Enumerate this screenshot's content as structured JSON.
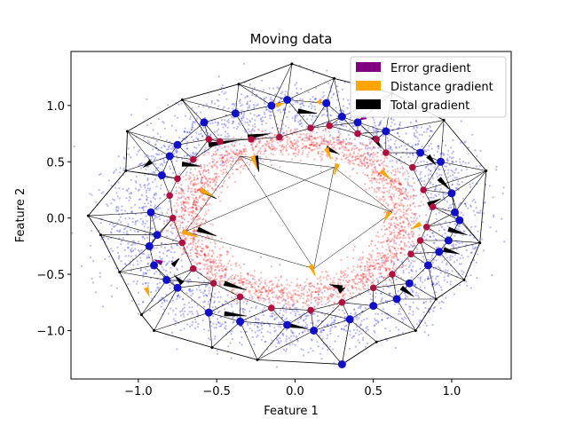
{
  "chart_data": {
    "type": "scatter",
    "title": "Moving data",
    "xlabel": "Feature 1",
    "ylabel": "Feature 2",
    "xlim": [
      -1.43,
      1.38
    ],
    "ylim": [
      -1.43,
      1.48
    ],
    "xticks": [
      -1.0,
      -0.5,
      0.0,
      0.5,
      1.0
    ],
    "xtick_labels": [
      "−1.0",
      "−0.5",
      "0.0",
      "0.5",
      "1.0"
    ],
    "yticks": [
      -1.0,
      -0.5,
      0.0,
      0.5,
      1.0
    ],
    "ytick_labels": [
      "−1.0",
      "−0.5",
      "0.0",
      "0.5",
      "1.0"
    ],
    "grid": false,
    "legend_position": "top-right",
    "legend": [
      {
        "label": "Error gradient",
        "color": "#800080"
      },
      {
        "label": "Distance gradient",
        "color": "#ffa500"
      },
      {
        "label": "Total gradient",
        "color": "#000000"
      }
    ],
    "clouds": [
      {
        "color": "#0000ff",
        "rx": 1.02,
        "ry": 0.98,
        "spread": 0.14,
        "count": 2600
      },
      {
        "color": "#ff0000",
        "rx": 0.68,
        "ry": 0.68,
        "spread": 0.1,
        "count": 2400
      }
    ],
    "outer_nodes": [
      [
        -1.32,
        0.02
      ],
      [
        -1.08,
        0.42
      ],
      [
        -1.07,
        0.77
      ],
      [
        -0.72,
        1.05
      ],
      [
        -0.36,
        1.19
      ],
      [
        -0.02,
        1.37
      ],
      [
        0.25,
        1.24
      ],
      [
        0.62,
        1.11
      ],
      [
        0.95,
        0.87
      ],
      [
        1.22,
        0.42
      ],
      [
        1.18,
        -0.22
      ],
      [
        1.08,
        -0.55
      ],
      [
        0.9,
        -0.72
      ],
      [
        0.77,
        -1.0
      ],
      [
        0.52,
        -1.1
      ],
      [
        0.3,
        -1.3
      ],
      [
        -0.24,
        -1.26
      ],
      [
        -0.53,
        -1.15
      ],
      [
        -0.9,
        -1.0
      ],
      [
        -0.98,
        -0.86
      ],
      [
        -1.12,
        -0.48
      ],
      [
        -1.24,
        -0.15
      ]
    ],
    "blue_nodes": [
      [
        -0.92,
        0.05
      ],
      [
        -0.88,
        -0.15
      ],
      [
        -0.85,
        0.38
      ],
      [
        -0.8,
        0.55
      ],
      [
        -0.75,
        0.65
      ],
      [
        -0.58,
        0.85
      ],
      [
        -0.38,
        0.93
      ],
      [
        -0.15,
        1.0
      ],
      [
        -0.05,
        1.05
      ],
      [
        0.2,
        1.02
      ],
      [
        0.3,
        0.9
      ],
      [
        0.4,
        0.85
      ],
      [
        0.58,
        0.77
      ],
      [
        0.8,
        0.58
      ],
      [
        0.93,
        0.5
      ],
      [
        1.0,
        0.22
      ],
      [
        1.02,
        0.05
      ],
      [
        1.05,
        -0.02
      ],
      [
        0.98,
        -0.2
      ],
      [
        0.92,
        -0.3
      ],
      [
        0.85,
        -0.42
      ],
      [
        0.73,
        -0.58
      ],
      [
        0.65,
        -0.72
      ],
      [
        0.5,
        -0.78
      ],
      [
        0.35,
        -0.9
      ],
      [
        0.12,
        -1.0
      ],
      [
        -0.05,
        -0.95
      ],
      [
        -0.35,
        -0.92
      ],
      [
        -0.55,
        -0.84
      ],
      [
        -0.75,
        -0.62
      ],
      [
        -0.82,
        -0.55
      ],
      [
        -0.9,
        -0.42
      ],
      [
        -0.93,
        -0.25
      ],
      [
        0.3,
        -1.3
      ]
    ],
    "red_nodes": [
      [
        -0.55,
        0.7
      ],
      [
        -0.48,
        0.68
      ],
      [
        -0.28,
        0.7
      ],
      [
        -0.1,
        0.72
      ],
      [
        0.1,
        0.8
      ],
      [
        0.22,
        0.82
      ],
      [
        0.4,
        0.75
      ],
      [
        0.52,
        0.7
      ],
      [
        0.58,
        0.58
      ],
      [
        0.75,
        0.45
      ],
      [
        0.82,
        0.25
      ],
      [
        0.88,
        0.1
      ],
      [
        0.84,
        -0.08
      ],
      [
        0.8,
        -0.2
      ],
      [
        0.74,
        -0.32
      ],
      [
        0.62,
        -0.5
      ],
      [
        0.5,
        -0.62
      ],
      [
        0.3,
        -0.75
      ],
      [
        0.1,
        -0.82
      ],
      [
        -0.15,
        -0.8
      ],
      [
        -0.35,
        -0.7
      ],
      [
        -0.52,
        -0.58
      ],
      [
        -0.65,
        -0.45
      ],
      [
        -0.72,
        -0.22
      ],
      [
        -0.78,
        0.0
      ],
      [
        -0.8,
        0.2
      ],
      [
        -0.75,
        0.35
      ],
      [
        -0.65,
        0.52
      ]
    ],
    "arrows": [
      {
        "x": -0.72,
        "y": 0.48,
        "dx": 0.12,
        "dy": -0.02,
        "type": "total"
      },
      {
        "x": -0.55,
        "y": 0.65,
        "dx": 0.18,
        "dy": 0.04,
        "type": "total"
      },
      {
        "x": -0.3,
        "y": 0.72,
        "dx": 0.14,
        "dy": 0.03,
        "type": "total"
      },
      {
        "x": -0.25,
        "y": 0.55,
        "dx": 0.02,
        "dy": -0.14,
        "type": "total"
      },
      {
        "x": 0.02,
        "y": 0.95,
        "dx": 0.12,
        "dy": -0.02,
        "type": "total"
      },
      {
        "x": 0.2,
        "y": 0.62,
        "dx": 0.08,
        "dy": -0.05,
        "type": "total"
      },
      {
        "x": 0.5,
        "y": 0.72,
        "dx": 0.05,
        "dy": -0.1,
        "type": "total"
      },
      {
        "x": 0.85,
        "y": 0.55,
        "dx": 0.05,
        "dy": -0.08,
        "type": "total"
      },
      {
        "x": 0.92,
        "y": 0.35,
        "dx": 0.07,
        "dy": -0.1,
        "type": "total"
      },
      {
        "x": 0.98,
        "y": -0.1,
        "dx": 0.12,
        "dy": -0.05,
        "type": "total"
      },
      {
        "x": 0.95,
        "y": -0.28,
        "dx": 0.1,
        "dy": -0.04,
        "type": "total"
      },
      {
        "x": 0.68,
        "y": -0.62,
        "dx": 0.08,
        "dy": -0.08,
        "type": "total"
      },
      {
        "x": 0.3,
        "y": -0.62,
        "dx": -0.08,
        "dy": 0.03,
        "type": "total"
      },
      {
        "x": -0.05,
        "y": -0.95,
        "dx": 0.12,
        "dy": -0.03,
        "type": "total"
      },
      {
        "x": -0.45,
        "y": -0.85,
        "dx": 0.14,
        "dy": -0.02,
        "type": "total"
      },
      {
        "x": -0.45,
        "y": -0.58,
        "dx": 0.14,
        "dy": -0.06,
        "type": "total"
      },
      {
        "x": -0.72,
        "y": -0.58,
        "dx": -0.05,
        "dy": 0.07,
        "type": "total"
      },
      {
        "x": -0.78,
        "y": -0.42,
        "dx": 0.04,
        "dy": 0.06,
        "type": "total"
      },
      {
        "x": -0.62,
        "y": -0.1,
        "dx": 0.12,
        "dy": -0.06,
        "type": "total"
      },
      {
        "x": -0.6,
        "y": 0.25,
        "dx": 0.1,
        "dy": -0.08,
        "type": "total"
      },
      {
        "x": 0.28,
        "y": -0.65,
        "dx": 0.04,
        "dy": 0.03,
        "type": "total"
      },
      {
        "x": -0.92,
        "y": 0.5,
        "dx": -0.05,
        "dy": -0.05,
        "type": "total"
      },
      {
        "x": 0.85,
        "y": 0.12,
        "dx": 0.08,
        "dy": 0.05,
        "type": "total"
      },
      {
        "x": -0.27,
        "y": 0.55,
        "dx": 0.03,
        "dy": -0.12,
        "type": "distance"
      },
      {
        "x": 0.27,
        "y": 0.48,
        "dx": -0.02,
        "dy": -0.1,
        "type": "distance"
      },
      {
        "x": 0.6,
        "y": 0.05,
        "dx": -0.03,
        "dy": -0.08,
        "type": "distance"
      },
      {
        "x": 0.1,
        "y": -0.42,
        "dx": 0.03,
        "dy": -0.1,
        "type": "distance"
      },
      {
        "x": -0.72,
        "y": -0.12,
        "dx": 0.1,
        "dy": -0.05,
        "type": "distance"
      },
      {
        "x": -0.6,
        "y": 0.25,
        "dx": 0.08,
        "dy": -0.06,
        "type": "distance"
      },
      {
        "x": -0.95,
        "y": -0.62,
        "dx": 0.02,
        "dy": -0.08,
        "type": "distance"
      },
      {
        "x": -0.12,
        "y": 1.0,
        "dx": 0.05,
        "dy": 0.02,
        "type": "distance"
      },
      {
        "x": 0.15,
        "y": 1.02,
        "dx": 0.02,
        "dy": 0.04,
        "type": "distance"
      },
      {
        "x": 0.2,
        "y": 0.62,
        "dx": 0.03,
        "dy": -0.1,
        "type": "distance"
      },
      {
        "x": 0.55,
        "y": 0.42,
        "dx": 0.06,
        "dy": -0.08,
        "type": "distance"
      },
      {
        "x": 0.8,
        "y": -0.05,
        "dx": -0.06,
        "dy": -0.05,
        "type": "distance"
      },
      {
        "x": -0.85,
        "y": -0.4,
        "dx": -0.05,
        "dy": 0.03,
        "type": "error"
      },
      {
        "x": 0.45,
        "y": 0.9,
        "dx": -0.04,
        "dy": -0.03,
        "type": "error"
      }
    ]
  }
}
